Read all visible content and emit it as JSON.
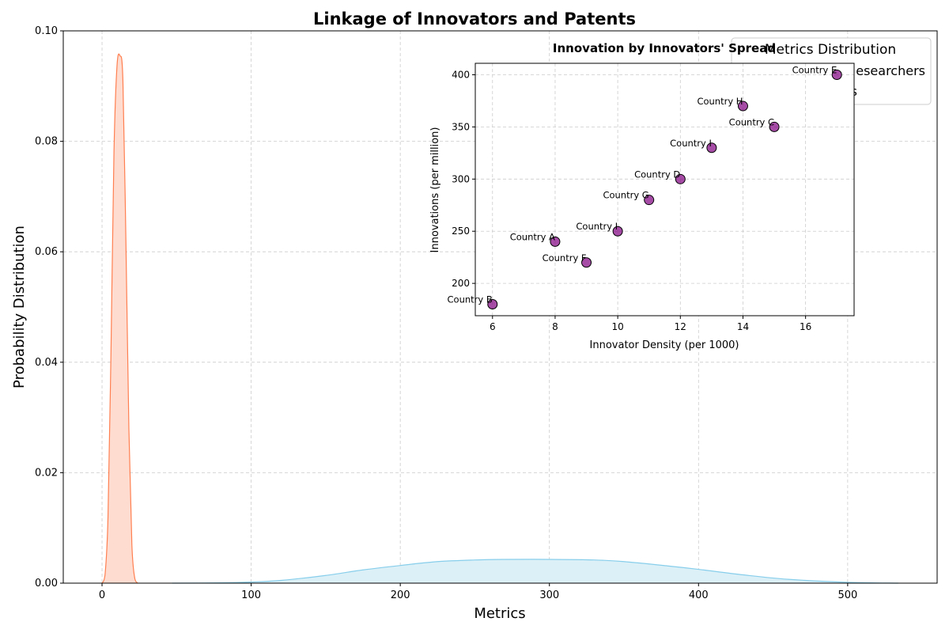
{
  "chart_data": [
    {
      "type": "area",
      "title": "Linkage of Innovators and Patents",
      "xlabel": "Metrics",
      "ylabel": "Probability Distribution",
      "xlim": [
        -26,
        560
      ],
      "ylim": [
        0,
        0.1
      ],
      "x_ticks": [
        "0",
        "100",
        "200",
        "300",
        "400",
        "500"
      ],
      "y_ticks": [
        "0.00",
        "0.02",
        "0.04",
        "0.06",
        "0.08",
        "0.10"
      ],
      "grid": true,
      "legend": {
        "placement": "top-right",
        "title": "Metrics Distribution",
        "entries": [
          "esearchers",
          "s"
        ]
      },
      "series": [
        {
          "color": "#ff7f50",
          "fill": "#ffdcd0",
          "x": [
            0,
            2,
            4,
            6,
            8,
            10,
            12,
            14,
            16,
            18,
            20,
            22,
            24
          ],
          "y": [
            0.0,
            0.0015,
            0.012,
            0.042,
            0.078,
            0.0935,
            0.0955,
            0.091,
            0.062,
            0.028,
            0.007,
            0.0008,
            0.0
          ]
        },
        {
          "color": "#87ceeb",
          "fill": "#dcf0f8",
          "x": [
            47,
            80,
            100,
            120,
            150,
            175,
            200,
            225,
            250,
            270,
            300,
            330,
            350,
            380,
            400,
            430,
            460,
            500,
            534
          ],
          "y": [
            0.0,
            5e-05,
            0.0002,
            0.0005,
            0.0014,
            0.0024,
            0.0032,
            0.0039,
            0.0042,
            0.0043,
            0.0043,
            0.0042,
            0.0039,
            0.0031,
            0.0025,
            0.0015,
            0.0007,
            0.00015,
            0.0
          ]
        }
      ]
    },
    {
      "type": "scatter",
      "title": "Innovation by Innovators' Spread",
      "xlabel": "Innovator Density (per 1000)",
      "ylabel": "Innovations (per million)",
      "xlim": [
        5.45,
        17.55
      ],
      "ylim": [
        169,
        411
      ],
      "x_ticks": [
        "6",
        "8",
        "10",
        "12",
        "14",
        "16"
      ],
      "y_ticks": [
        "200",
        "250",
        "300",
        "350",
        "400"
      ],
      "grid": true,
      "point_color": "#800080",
      "points": [
        {
          "label": "Country A",
          "x": 8,
          "y": 240
        },
        {
          "label": "Country B",
          "x": 6,
          "y": 180
        },
        {
          "label": "Country C",
          "x": 15,
          "y": 350
        },
        {
          "label": "Country D",
          "x": 12,
          "y": 300
        },
        {
          "label": "Country E",
          "x": 17,
          "y": 400
        },
        {
          "label": "Country F",
          "x": 9,
          "y": 220
        },
        {
          "label": "Country G",
          "x": 11,
          "y": 280
        },
        {
          "label": "Country H",
          "x": 14,
          "y": 370
        },
        {
          "label": "Country I",
          "x": 13,
          "y": 330
        },
        {
          "label": "Country I",
          "x": 10,
          "y": 250
        }
      ]
    }
  ]
}
